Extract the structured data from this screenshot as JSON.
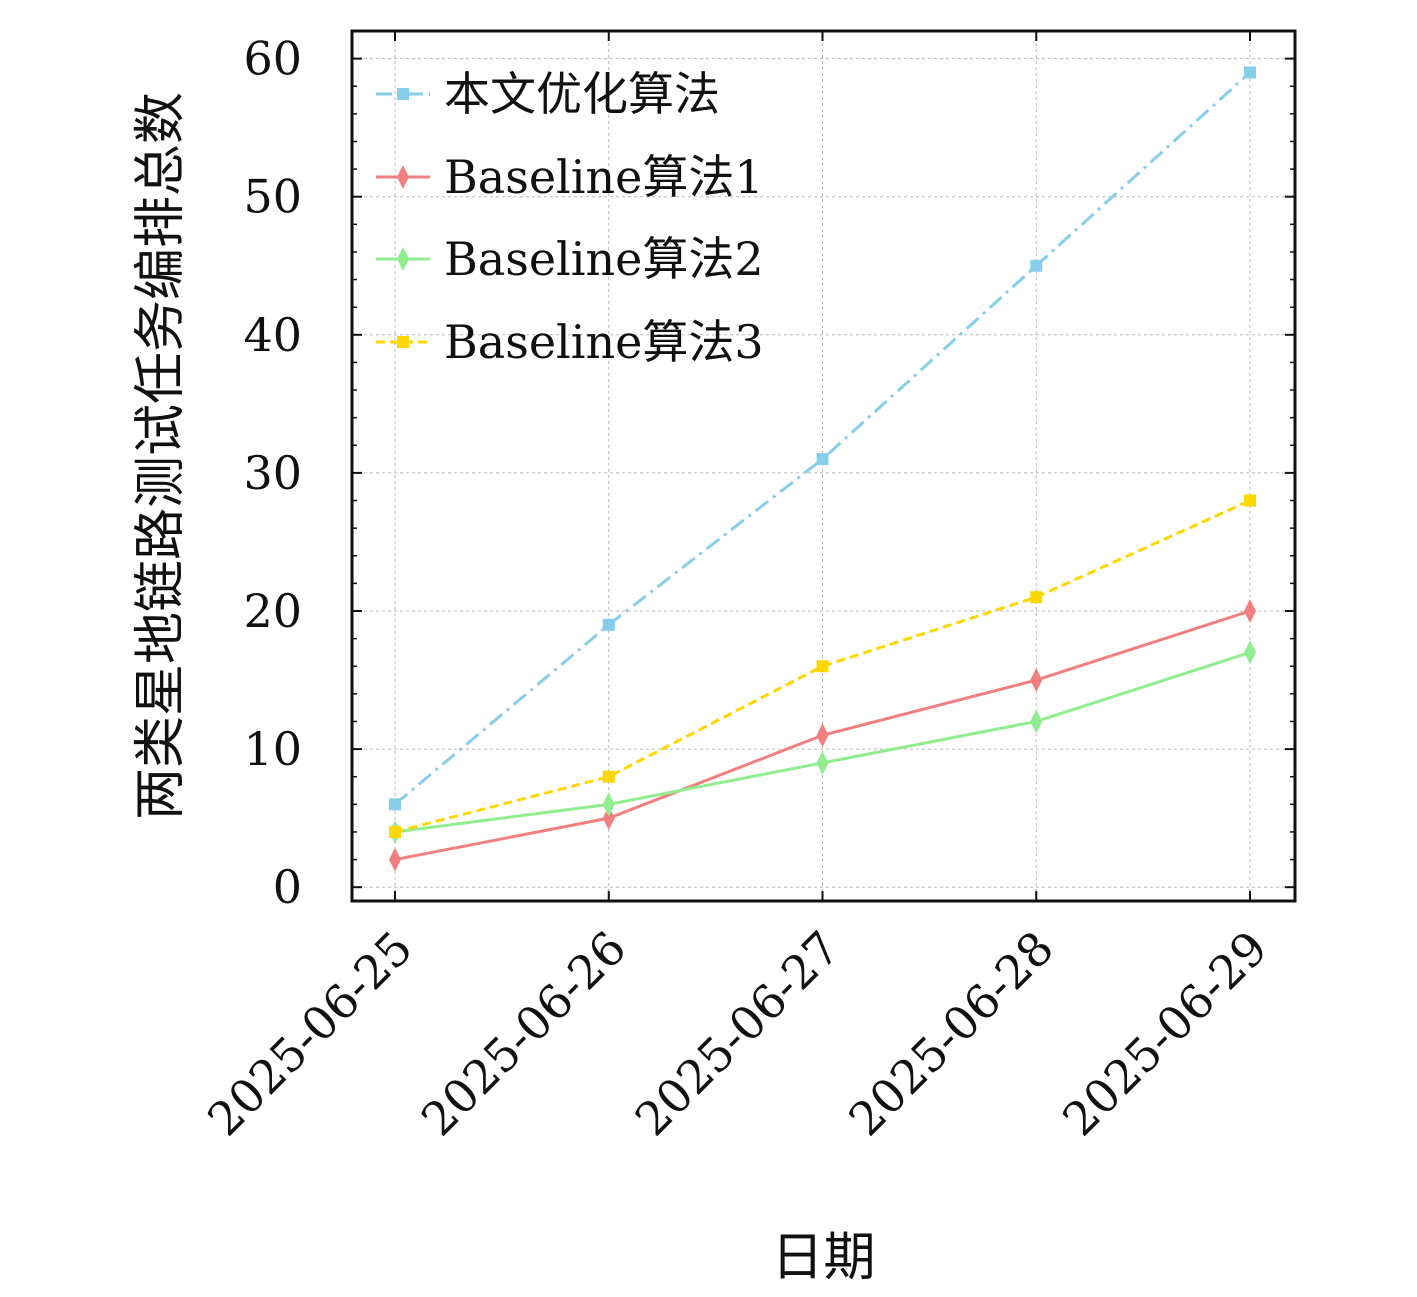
{
  "chart_data": {
    "type": "line",
    "xlabel": "日期",
    "ylabel": "两类星地链路测试任务编排总数",
    "categories": [
      "2025-06-25",
      "2025-06-26",
      "2025-06-27",
      "2025-06-28",
      "2025-06-29"
    ],
    "y_ticks": [
      "0",
      "10",
      "20",
      "30",
      "40",
      "50",
      "60"
    ],
    "ylim": [
      -1,
      62
    ],
    "grid": true,
    "legend_position": "top-left",
    "series": [
      {
        "name": "本文优化算法",
        "values": [
          6,
          19,
          31,
          45,
          59
        ],
        "color": "#87ceeb",
        "line_style": "dash-dot",
        "marker": "square"
      },
      {
        "name": "Baseline算法1",
        "values": [
          2,
          5,
          11,
          15,
          20
        ],
        "color": "#f08080",
        "line_style": "solid",
        "marker": "thin-diamond"
      },
      {
        "name": "Baseline算法2",
        "values": [
          4,
          6,
          9,
          12,
          17
        ],
        "color": "#90ee90",
        "line_style": "solid",
        "marker": "thin-diamond"
      },
      {
        "name": "Baseline算法3",
        "values": [
          4,
          8,
          16,
          21,
          28
        ],
        "color": "#ffd700",
        "line_style": "dashed",
        "marker": "square"
      }
    ]
  }
}
